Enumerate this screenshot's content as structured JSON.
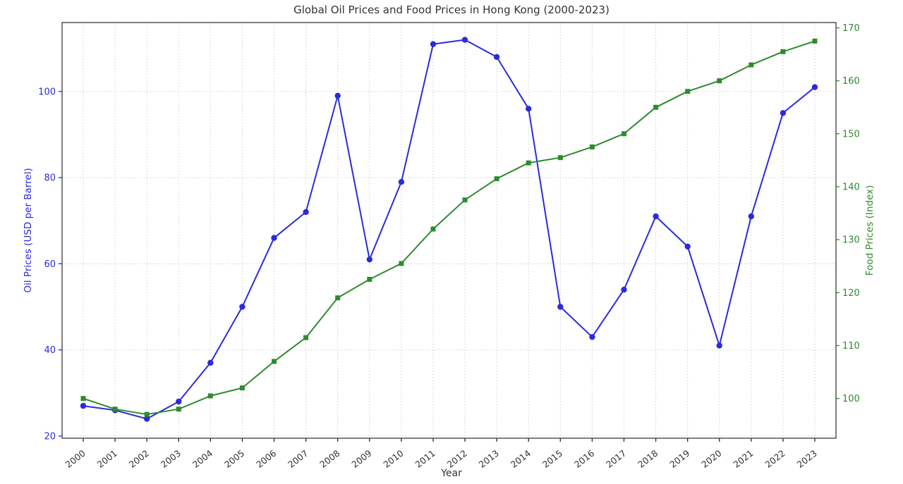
{
  "chart_data": {
    "type": "line",
    "title": "Global Oil Prices and Food Prices in Hong Kong (2000-2023)",
    "xlabel": "Year",
    "categories": [
      2000,
      2001,
      2002,
      2003,
      2004,
      2005,
      2006,
      2007,
      2008,
      2009,
      2010,
      2011,
      2012,
      2013,
      2014,
      2015,
      2016,
      2017,
      2018,
      2019,
      2020,
      2021,
      2022,
      2023
    ],
    "series": [
      {
        "name": "Oil Prices",
        "axis": "left",
        "color": "#2b2bdb",
        "marker": "circle",
        "values": [
          27,
          26,
          24,
          28,
          37,
          50,
          66,
          72,
          99,
          61,
          79,
          111,
          112,
          108,
          96,
          50,
          43,
          54,
          71,
          64,
          41,
          71,
          95,
          101
        ]
      },
      {
        "name": "Food Prices",
        "axis": "right",
        "color": "#2e8b2e",
        "marker": "square",
        "values": [
          100,
          98,
          97,
          98,
          100.5,
          102,
          107,
          111.5,
          119,
          122.5,
          125.5,
          132,
          137.5,
          141.5,
          144.5,
          145.5,
          147.5,
          150,
          155,
          158,
          160,
          163,
          165.5,
          167.5
        ]
      }
    ],
    "left_axis": {
      "label": "Oil Prices (USD per Barrel)",
      "ticks": [
        20,
        40,
        60,
        80,
        100
      ],
      "ylim": [
        19.5,
        116
      ],
      "color": "#2b2bdb"
    },
    "right_axis": {
      "label": "Food Prices (Index)",
      "ticks": [
        100,
        110,
        120,
        130,
        140,
        150,
        160,
        170
      ],
      "ylim": [
        92.5,
        171
      ],
      "color": "#2e8b2e"
    },
    "grid": true,
    "legend": "none"
  }
}
